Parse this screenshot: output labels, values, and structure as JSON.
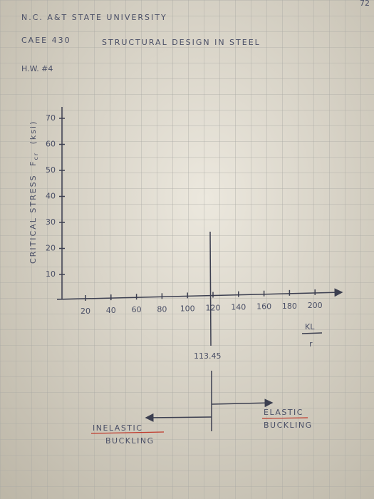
{
  "header": {
    "page_number": "72",
    "line1": "N.C. A&T  STATE UNIVERSITY",
    "line2": "CAEE 430",
    "line3": "STRUCTURAL DESIGN IN STEEL",
    "line4": "H.W. #4"
  },
  "graph": {
    "y_axis_label": [
      "CRITICAL STRESS",
      "F",
      "cr",
      "(ksi)"
    ],
    "y_ticks": [
      "10",
      "20",
      "30",
      "40",
      "50",
      "60",
      "70"
    ],
    "x_ticks": [
      "20",
      "40",
      "60",
      "80",
      "100",
      "120",
      "140",
      "160",
      "180",
      "200"
    ],
    "x_axis_label": {
      "numerator": "KL",
      "denominator": "r"
    },
    "limit_label": "113.45",
    "left_region": [
      "INELASTIC",
      "BUCKLING"
    ],
    "right_region": [
      "ELASTIC",
      "BUCKLING"
    ]
  }
}
